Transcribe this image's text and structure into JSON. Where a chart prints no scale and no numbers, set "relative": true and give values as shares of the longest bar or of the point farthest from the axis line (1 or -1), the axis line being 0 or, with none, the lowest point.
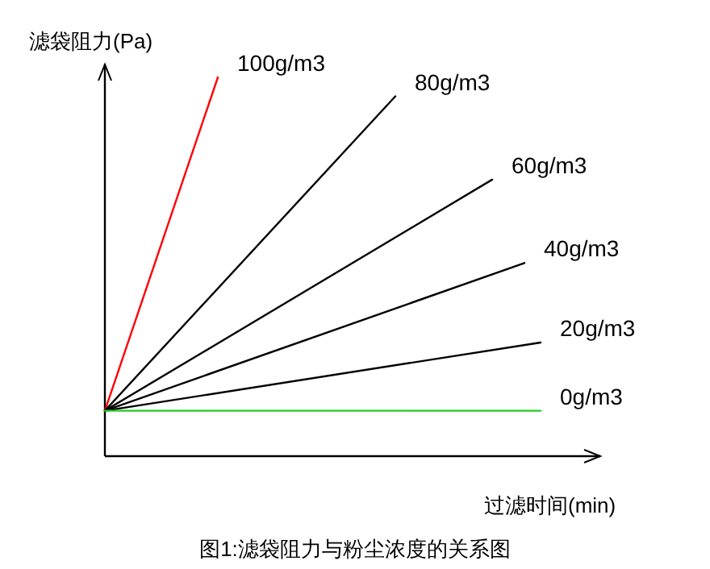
{
  "chart_data": {
    "type": "line",
    "relative": true,
    "title": "图1:滤袋阻力与粉尘浓度的关系图",
    "xlabel": "过滤时间(min)",
    "ylabel": "滤袋阻力(Pa)",
    "marker": "none",
    "line_style": "solid",
    "categories": [
      null,
      null,
      null,
      null,
      null,
      null,
      null,
      null,
      null,
      null,
      null,
      null,
      null,
      null,
      null,
      null,
      null,
      null,
      null,
      null,
      null,
      null,
      null,
      null,
      null,
      null,
      null,
      null,
      null,
      null,
      null
    ],
    "series": [
      {
        "name": "100g/m3",
        "color": "#ff0000",
        "values": [
          0.12,
          null,
          null,
          null,
          null,
          null,
          null,
          1,
          null,
          null,
          null,
          null,
          null,
          null,
          null,
          null,
          null,
          null,
          null,
          null,
          null,
          null,
          null,
          null,
          null,
          null,
          null,
          null,
          null,
          null,
          null
        ]
      },
      {
        "name": "80g/m3",
        "color": "#000000",
        "values": [
          0.12,
          null,
          null,
          null,
          null,
          null,
          null,
          null,
          null,
          null,
          null,
          null,
          null,
          null,
          null,
          null,
          null,
          null,
          0.95,
          null,
          null,
          null,
          null,
          null,
          null,
          null,
          null,
          null,
          null,
          null,
          null
        ]
      },
      {
        "name": "60g/m3",
        "color": "#000000",
        "values": [
          0.12,
          null,
          null,
          null,
          null,
          null,
          null,
          null,
          null,
          null,
          null,
          null,
          null,
          null,
          null,
          null,
          null,
          null,
          null,
          null,
          null,
          null,
          null,
          null,
          0.73,
          null,
          null,
          null,
          null,
          null,
          null
        ]
      },
      {
        "name": "40g/m3",
        "color": "#000000",
        "values": [
          0.12,
          null,
          null,
          null,
          null,
          null,
          null,
          null,
          null,
          null,
          null,
          null,
          null,
          null,
          null,
          null,
          null,
          null,
          null,
          null,
          null,
          null,
          null,
          null,
          null,
          null,
          0.51,
          null,
          null,
          null,
          null
        ]
      },
      {
        "name": "20g/m3",
        "color": "#000000",
        "values": [
          0.12,
          null,
          null,
          null,
          null,
          null,
          null,
          null,
          null,
          null,
          null,
          null,
          null,
          null,
          null,
          null,
          null,
          null,
          null,
          null,
          null,
          null,
          null,
          null,
          null,
          null,
          null,
          0.3,
          null,
          null,
          null
        ]
      },
      {
        "name": "0g/m3",
        "color": "#22cc22",
        "values": [
          0.12,
          null,
          null,
          null,
          null,
          null,
          null,
          null,
          null,
          null,
          null,
          null,
          null,
          null,
          null,
          null,
          null,
          null,
          null,
          null,
          null,
          null,
          null,
          null,
          null,
          null,
          null,
          0.12,
          null,
          null,
          null
        ]
      }
    ]
  }
}
